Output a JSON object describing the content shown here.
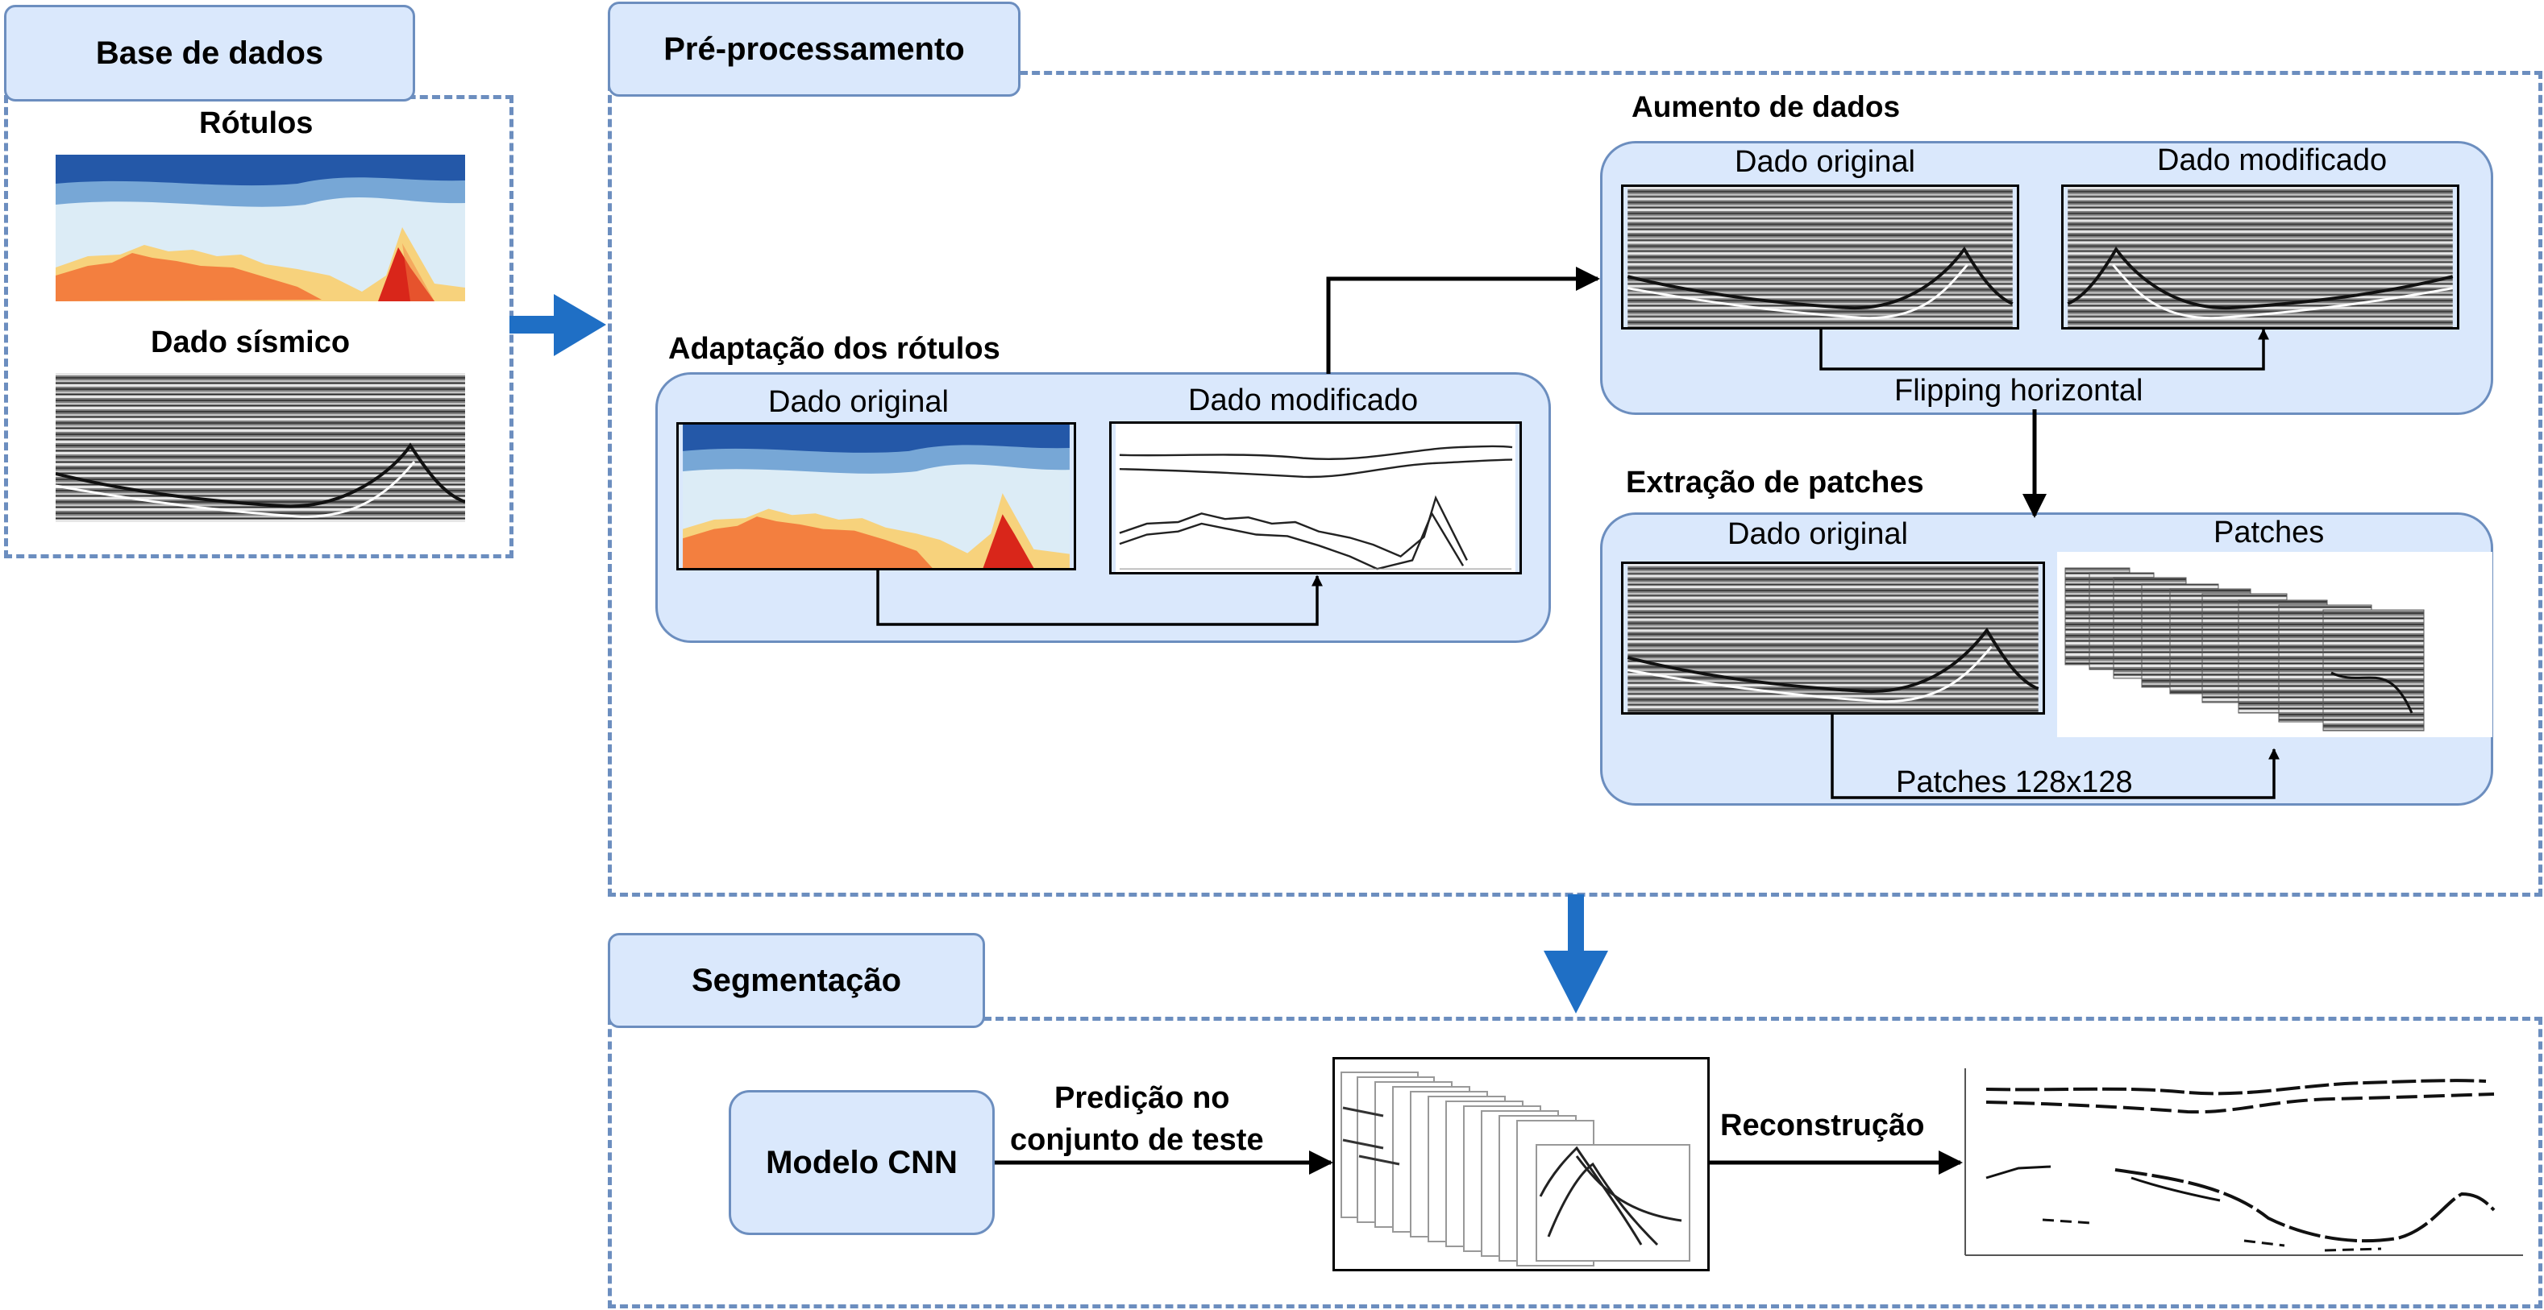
{
  "colors": {
    "box_fill": "#dae8fc",
    "box_border": "#6c8ebf",
    "arrow_blue": "#1f6fc5",
    "label_colors": [
      "#2458a8",
      "#77a7d6",
      "#dcecf6",
      "#f7d27c",
      "#f37f3f",
      "#d9261a"
    ]
  },
  "base_dados": {
    "title": "Base de dados",
    "rotulos_label": "Rótulos",
    "sismico_label": "Dado sísmico"
  },
  "preprocessamento": {
    "title": "Pré-processamento",
    "adaptacao": {
      "title": "Adaptação dos rótulos",
      "original_label": "Dado original",
      "modificado_label": "Dado modificado"
    },
    "aumento": {
      "title": "Aumento de dados",
      "original_label": "Dado original",
      "modificado_label": "Dado modificado",
      "operation_label": "Flipping horizontal"
    },
    "extracao": {
      "title": "Extração de patches",
      "original_label": "Dado original",
      "patches_label": "Patches",
      "operation_label": "Patches 128x128"
    }
  },
  "segmentacao": {
    "title": "Segmentação",
    "model_label": "Modelo CNN",
    "prediction_label_line1": "Predição no",
    "prediction_label_line2": "conjunto de teste",
    "reconstruction_label": "Reconstrução"
  }
}
